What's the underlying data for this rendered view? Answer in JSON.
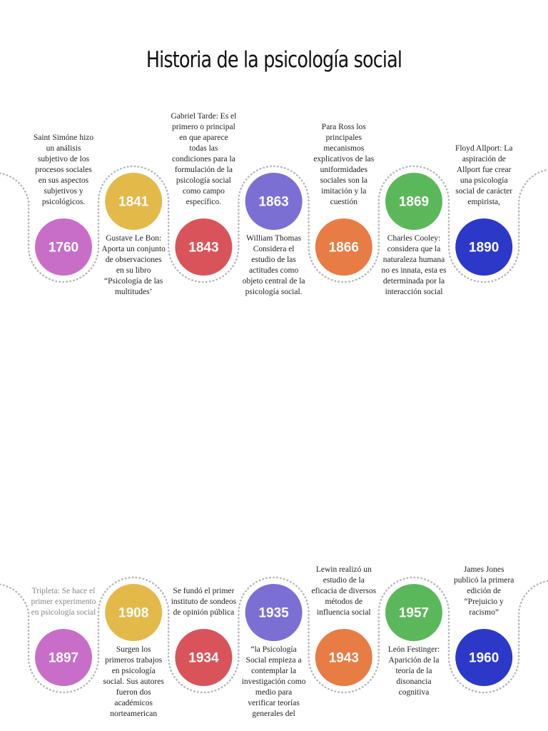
{
  "title": "Historia de la psicología social",
  "events": [
    {
      "year": "1760",
      "text": "Saint Simóne hizo un análisis subjetivo de los procesos sociales en sus aspectos subjetivos y psicológicos."
    },
    {
      "year": "1841",
      "text": "Gustave Le Bon: Aporta un conjunto de observaciones en su libro “Psicología de las multitudes’"
    },
    {
      "year": "1843",
      "text": "Gabriel Tarde: Es el primero o principal en que aparece todas las condiciones para la formulación de la psicología social como campo específico."
    },
    {
      "year": "1863",
      "text": "William Thomas Considera el estudio de las actitudes como objeto central de la psicología social."
    },
    {
      "year": "1866",
      "text": "Para Ross los principales mecanismos explicativos de las uniformidades sociales son la imitación y la cuestión"
    },
    {
      "year": "1869",
      "text": "Charles Cooley: considera que la naturaleza humana no es innata, esta es determinada por la interacción social"
    },
    {
      "year": "1890",
      "text": "Floyd Allport: La aspiración de Allport fue crear una psicología social de carácter empirista,"
    },
    {
      "year": "1897",
      "text": "Tripleta: Se hace el primer experimento en psicología social"
    },
    {
      "year": "1908",
      "text": "Surgen los primeros trabajos en psicología social. Sus autores fueron dos académicos norteamerican"
    },
    {
      "year": "1934",
      "text": "Se fundó el primer instituto de sondeos de opinión pública"
    },
    {
      "year": "1935",
      "text": "“la Psicología Social empieza a contemplar la investigación como medio para verificar teorías generales del"
    },
    {
      "year": "1943",
      "text": "Lewin realizó un estudio de la eficacia de diversos métodos de influencia social"
    },
    {
      "year": "1957",
      "text": "León Festinger: Aparición de la teoría de la disonancia cognitiva"
    },
    {
      "year": "1960",
      "text": "James Jones publicó la primera edición de “Prejuicio y racismo”"
    }
  ]
}
